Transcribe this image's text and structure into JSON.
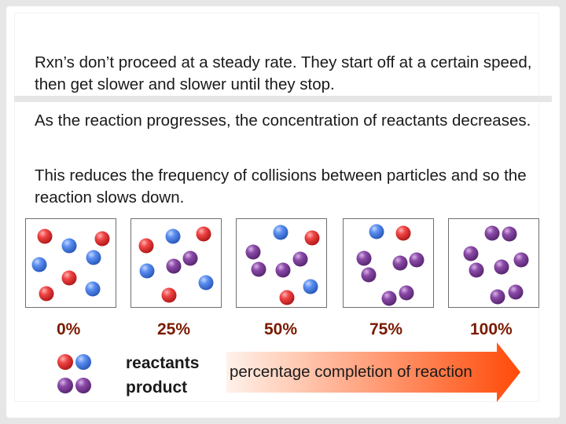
{
  "paragraphs": [
    "Rxn’s don’t proceed at a steady rate. They start off at a certain speed, then get slower and slower until they stop.",
    "As the reaction progresses, the concentration of reactants decreases.",
    "This reduces the frequency of collisions between particles and so the reaction slows down."
  ],
  "percentages": [
    "0%",
    "25%",
    "50%",
    "75%",
    "100%"
  ],
  "legend": {
    "reactants": "reactants",
    "product": "product"
  },
  "arrow_label": "percentage completion of reaction",
  "colors": {
    "red": "#e03131",
    "blue": "#4a7fe0",
    "purple": "#7a3e96",
    "arrow_start": "#fff2ea",
    "arrow_end": "#ff4a08",
    "percent_text": "#7a1a00"
  }
}
